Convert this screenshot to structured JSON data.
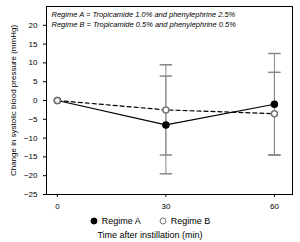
{
  "chart_data": {
    "type": "line",
    "x_label": "Time after instillation (min)",
    "y_label": "Change in systolic blood pressure (mmHg)",
    "annotations": [
      "Regime A = Tropicamide 1.0% and phenylephrine 2.5%",
      "Regime B = Tropicamide 0.5% and phenylephrine 0.5%"
    ],
    "x": [
      0,
      30,
      60
    ],
    "series": [
      {
        "name": "Regime A",
        "color": "#000000",
        "marker": "filled_circle",
        "line_style": "solid",
        "values": [
          0,
          -6.5,
          -1
        ],
        "errors": [
          0,
          13,
          13.5
        ]
      },
      {
        "name": "Regime B",
        "color": "#000000",
        "marker": "open_circle",
        "line_style": "dashed",
        "values": [
          0,
          -2.5,
          -3.5
        ],
        "errors": [
          0,
          12,
          11
        ]
      }
    ],
    "xlim": [
      -3,
      65
    ],
    "xticks": [
      0,
      30,
      60
    ],
    "ylim": [
      -25,
      25
    ],
    "yticks": [
      -25,
      -20,
      -15,
      -10,
      -5,
      0,
      5,
      10,
      15,
      20
    ],
    "legend": "bottom",
    "grid": false
  }
}
